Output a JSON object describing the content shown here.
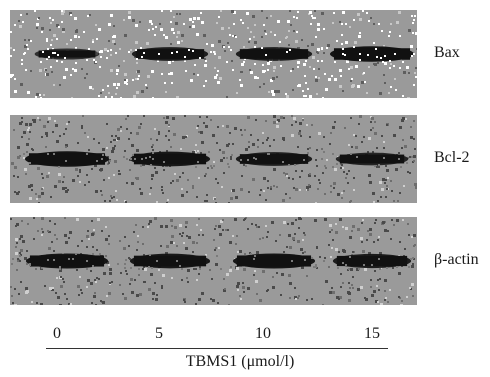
{
  "panels": [
    {
      "id": "bax",
      "label": "Bax",
      "bands": [
        0.45,
        0.75,
        0.75,
        0.95
      ],
      "speckle": "light"
    },
    {
      "id": "bcl2",
      "label": "Bcl-2",
      "bands": [
        0.95,
        0.85,
        0.75,
        0.65
      ],
      "speckle": "dark"
    },
    {
      "id": "actin",
      "label": "β-actin",
      "bands": [
        0.9,
        0.85,
        0.9,
        0.8
      ],
      "speckle": "dark"
    }
  ],
  "axis": {
    "ticks": [
      "0",
      "5",
      "10",
      "15"
    ],
    "label": "TBMS1 (μmol/l)"
  },
  "colors": {
    "membrane": "#9a9a9a",
    "band": "#111111"
  }
}
